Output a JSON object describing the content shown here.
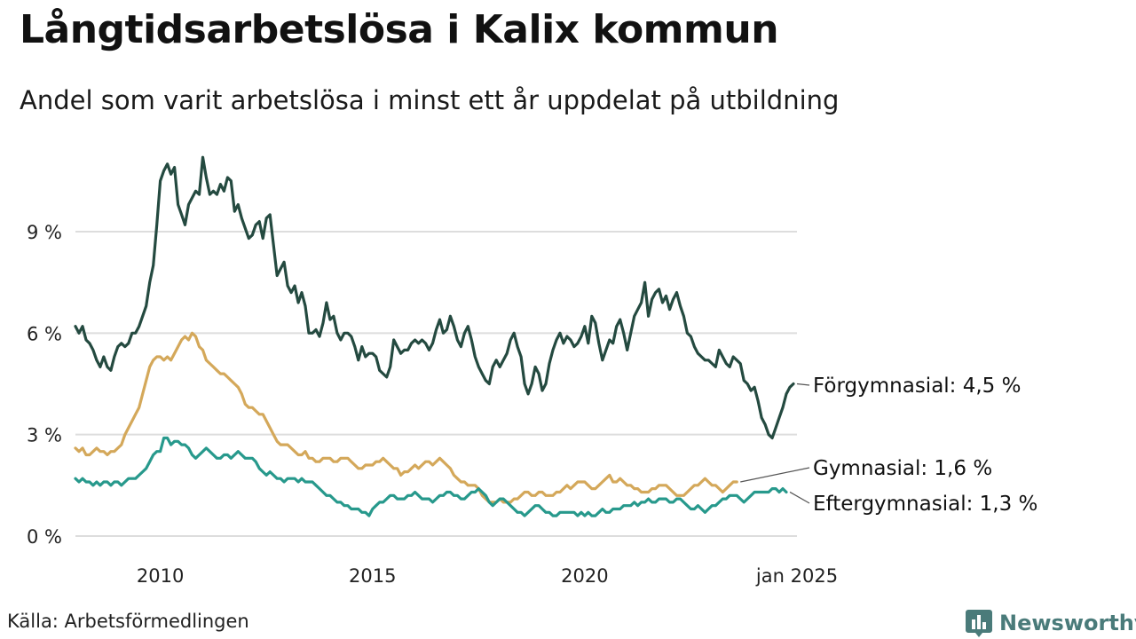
{
  "header": {
    "title": "Långtidsarbetslösa i Kalix kommun",
    "subtitle": "Andel som varit arbetslösa i minst ett år uppdelat på utbildning"
  },
  "footer": {
    "source": "Källa: Arbetsförmedlingen",
    "brand": "Newsworthy"
  },
  "colors": {
    "forgymnasial": "#244a40",
    "gymnasial": "#d4a85a",
    "eftergymnasial": "#27998c",
    "grid": "#dddddd",
    "brand": "#4a7b7a"
  },
  "icons": {
    "brand_logo": "newsworthy-bar-chart-icon"
  },
  "chart_data": {
    "type": "line",
    "title": "Långtidsarbetslösa i Kalix kommun",
    "subtitle": "Andel som varit arbetslösa i minst ett år uppdelat på utbildning",
    "xlabel": "",
    "ylabel": "",
    "x_start": 2008.0,
    "x_step": 0.08333,
    "xlim": [
      2008.0,
      2025.0
    ],
    "ylim": [
      0,
      11.5
    ],
    "yticks": [
      0,
      3,
      6,
      9
    ],
    "ytick_labels": [
      "0 %",
      "3 %",
      "6 %",
      "9 %"
    ],
    "xticks": [
      2010,
      2015,
      2020,
      2025
    ],
    "xtick_labels": [
      "2010",
      "2015",
      "2020",
      "jan 2025"
    ],
    "grid": true,
    "legend": "end-labels",
    "series": [
      {
        "key": "forgymnasial",
        "name": "Förgymnasial",
        "end_label": "Förgymnasial: 4,5 %",
        "values": [
          6.2,
          6.0,
          6.2,
          5.8,
          5.7,
          5.5,
          5.2,
          5.0,
          5.3,
          5.0,
          4.9,
          5.3,
          5.6,
          5.7,
          5.6,
          5.7,
          6.0,
          6.0,
          6.2,
          6.5,
          6.8,
          7.5,
          8.0,
          9.2,
          10.5,
          10.8,
          11.0,
          10.7,
          10.9,
          9.8,
          9.5,
          9.2,
          9.8,
          10.0,
          10.2,
          10.1,
          11.2,
          10.6,
          10.1,
          10.2,
          10.1,
          10.4,
          10.2,
          10.6,
          10.5,
          9.6,
          9.8,
          9.4,
          9.1,
          8.8,
          8.9,
          9.2,
          9.3,
          8.8,
          9.4,
          9.5,
          8.6,
          7.7,
          7.9,
          8.1,
          7.4,
          7.2,
          7.4,
          6.9,
          7.2,
          6.8,
          6.0,
          6.0,
          6.1,
          5.9,
          6.3,
          6.9,
          6.4,
          6.5,
          6.0,
          5.8,
          6.0,
          6.0,
          5.9,
          5.6,
          5.2,
          5.6,
          5.3,
          5.4,
          5.4,
          5.3,
          4.9,
          4.8,
          4.7,
          5.0,
          5.8,
          5.6,
          5.4,
          5.5,
          5.5,
          5.7,
          5.8,
          5.7,
          5.8,
          5.7,
          5.5,
          5.7,
          6.1,
          6.4,
          6.0,
          6.1,
          6.5,
          6.2,
          5.8,
          5.6,
          6.0,
          6.2,
          5.8,
          5.3,
          5.0,
          4.8,
          4.6,
          4.5,
          5.0,
          5.2,
          5.0,
          5.2,
          5.4,
          5.8,
          6.0,
          5.6,
          5.3,
          4.5,
          4.2,
          4.5,
          5.0,
          4.8,
          4.3,
          4.5,
          5.1,
          5.5,
          5.8,
          6.0,
          5.7,
          5.9,
          5.8,
          5.6,
          5.7,
          5.9,
          6.2,
          5.7,
          6.5,
          6.3,
          5.7,
          5.2,
          5.5,
          5.8,
          5.7,
          6.2,
          6.4,
          6.0,
          5.5,
          6.0,
          6.5,
          6.7,
          6.9,
          7.5,
          6.5,
          7.0,
          7.2,
          7.3,
          6.9,
          7.1,
          6.7,
          7.0,
          7.2,
          6.8,
          6.5,
          6.0,
          5.9,
          5.6,
          5.4,
          5.3,
          5.2,
          5.2,
          5.1,
          5.0,
          5.5,
          5.3,
          5.1,
          5.0,
          5.3,
          5.2,
          5.1,
          4.6,
          4.5,
          4.3,
          4.4,
          4.0,
          3.5,
          3.3,
          3.0,
          2.9,
          3.2,
          3.5,
          3.8,
          4.2,
          4.4,
          4.5
        ]
      },
      {
        "key": "gymnasial",
        "name": "Gymnasial",
        "end_label": "Gymnasial: 1,6 %",
        "values": [
          2.6,
          2.5,
          2.6,
          2.4,
          2.4,
          2.5,
          2.6,
          2.5,
          2.5,
          2.4,
          2.5,
          2.5,
          2.6,
          2.7,
          3.0,
          3.2,
          3.4,
          3.6,
          3.8,
          4.2,
          4.6,
          5.0,
          5.2,
          5.3,
          5.3,
          5.2,
          5.3,
          5.2,
          5.4,
          5.6,
          5.8,
          5.9,
          5.8,
          6.0,
          5.9,
          5.6,
          5.5,
          5.2,
          5.1,
          5.0,
          4.9,
          4.8,
          4.8,
          4.7,
          4.6,
          4.5,
          4.4,
          4.2,
          3.9,
          3.8,
          3.8,
          3.7,
          3.6,
          3.6,
          3.4,
          3.2,
          3.0,
          2.8,
          2.7,
          2.7,
          2.7,
          2.6,
          2.5,
          2.4,
          2.4,
          2.5,
          2.3,
          2.3,
          2.2,
          2.2,
          2.3,
          2.3,
          2.3,
          2.2,
          2.2,
          2.3,
          2.3,
          2.3,
          2.2,
          2.1,
          2.0,
          2.0,
          2.1,
          2.1,
          2.1,
          2.2,
          2.2,
          2.3,
          2.2,
          2.1,
          2.0,
          2.0,
          1.8,
          1.9,
          1.9,
          2.0,
          2.1,
          2.0,
          2.1,
          2.2,
          2.2,
          2.1,
          2.2,
          2.3,
          2.2,
          2.1,
          2.0,
          1.8,
          1.7,
          1.6,
          1.6,
          1.5,
          1.5,
          1.5,
          1.4,
          1.2,
          1.1,
          1.0,
          1.0,
          1.0,
          1.1,
          1.0,
          1.0,
          1.0,
          1.1,
          1.1,
          1.2,
          1.3,
          1.3,
          1.2,
          1.2,
          1.3,
          1.3,
          1.2,
          1.2,
          1.2,
          1.3,
          1.3,
          1.4,
          1.5,
          1.4,
          1.5,
          1.6,
          1.6,
          1.6,
          1.5,
          1.4,
          1.4,
          1.5,
          1.6,
          1.7,
          1.8,
          1.6,
          1.6,
          1.7,
          1.6,
          1.5,
          1.5,
          1.4,
          1.4,
          1.3,
          1.3,
          1.3,
          1.4,
          1.4,
          1.5,
          1.5,
          1.5,
          1.4,
          1.3,
          1.2,
          1.2,
          1.2,
          1.3,
          1.4,
          1.5,
          1.5,
          1.6,
          1.7,
          1.6,
          1.5,
          1.5,
          1.4,
          1.3,
          1.4,
          1.5,
          1.6,
          1.6
        ]
      },
      {
        "key": "eftergymnasial",
        "name": "Eftergymnasial",
        "end_label": "Eftergymnasial: 1,3 %",
        "values": [
          1.7,
          1.6,
          1.7,
          1.6,
          1.6,
          1.5,
          1.6,
          1.5,
          1.6,
          1.6,
          1.5,
          1.6,
          1.6,
          1.5,
          1.6,
          1.7,
          1.7,
          1.7,
          1.8,
          1.9,
          2.0,
          2.2,
          2.4,
          2.5,
          2.5,
          2.9,
          2.9,
          2.7,
          2.8,
          2.8,
          2.7,
          2.7,
          2.6,
          2.4,
          2.3,
          2.4,
          2.5,
          2.6,
          2.5,
          2.4,
          2.3,
          2.3,
          2.4,
          2.4,
          2.3,
          2.4,
          2.5,
          2.4,
          2.3,
          2.3,
          2.3,
          2.2,
          2.0,
          1.9,
          1.8,
          1.9,
          1.8,
          1.7,
          1.7,
          1.6,
          1.7,
          1.7,
          1.7,
          1.6,
          1.7,
          1.6,
          1.6,
          1.6,
          1.5,
          1.4,
          1.3,
          1.2,
          1.2,
          1.1,
          1.0,
          1.0,
          0.9,
          0.9,
          0.8,
          0.8,
          0.8,
          0.7,
          0.7,
          0.6,
          0.8,
          0.9,
          1.0,
          1.0,
          1.1,
          1.2,
          1.2,
          1.1,
          1.1,
          1.1,
          1.2,
          1.2,
          1.3,
          1.2,
          1.1,
          1.1,
          1.1,
          1.0,
          1.1,
          1.2,
          1.2,
          1.3,
          1.3,
          1.2,
          1.2,
          1.1,
          1.1,
          1.2,
          1.3,
          1.3,
          1.4,
          1.3,
          1.2,
          1.0,
          0.9,
          1.0,
          1.1,
          1.1,
          1.0,
          0.9,
          0.8,
          0.7,
          0.7,
          0.6,
          0.7,
          0.8,
          0.9,
          0.9,
          0.8,
          0.7,
          0.7,
          0.6,
          0.6,
          0.7,
          0.7,
          0.7,
          0.7,
          0.7,
          0.6,
          0.7,
          0.6,
          0.7,
          0.6,
          0.6,
          0.7,
          0.8,
          0.7,
          0.7,
          0.8,
          0.8,
          0.8,
          0.9,
          0.9,
          0.9,
          1.0,
          0.9,
          1.0,
          1.0,
          1.1,
          1.0,
          1.0,
          1.1,
          1.1,
          1.1,
          1.0,
          1.0,
          1.1,
          1.1,
          1.0,
          0.9,
          0.8,
          0.8,
          0.9,
          0.8,
          0.7,
          0.8,
          0.9,
          0.9,
          1.0,
          1.1,
          1.1,
          1.2,
          1.2,
          1.2,
          1.1,
          1.0,
          1.1,
          1.2,
          1.3,
          1.3,
          1.3,
          1.3,
          1.3,
          1.4,
          1.4,
          1.3,
          1.4,
          1.3
        ]
      }
    ]
  }
}
